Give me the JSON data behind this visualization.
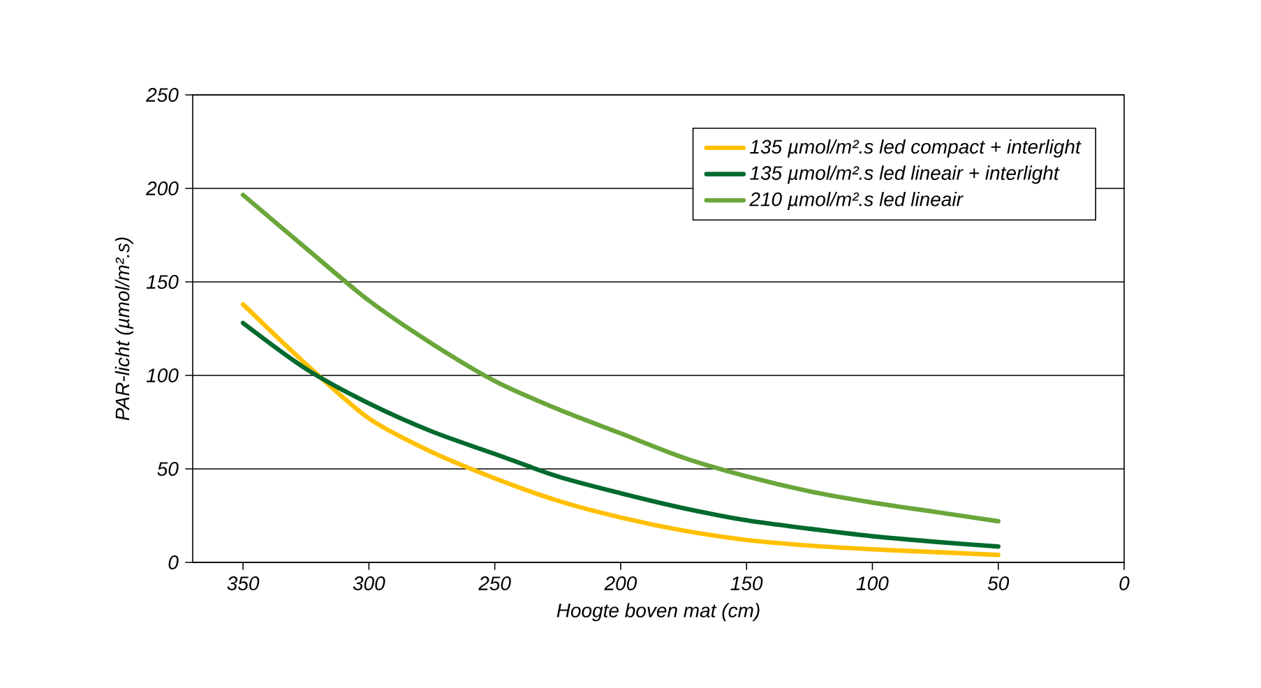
{
  "chart_data": {
    "type": "line",
    "xlabel": "Hoogte boven mat (cm)",
    "ylabel": "PAR-licht (µmol/m².s)",
    "x": [
      350,
      325,
      300,
      275,
      250,
      225,
      200,
      175,
      150,
      125,
      100,
      75,
      50
    ],
    "series": [
      {
        "name": "135 µmol/m².s led compact + interlight",
        "color": "#ffc000",
        "values": [
          138,
          106,
          77,
          59,
          45,
          33,
          24,
          17,
          12,
          9,
          7,
          5.5,
          4
        ]
      },
      {
        "name": "135 µmol/m².s led lineair + interlight",
        "color": "#006a2e",
        "values": [
          128,
          103.5,
          85,
          70,
          58,
          46,
          37,
          29,
          22.5,
          18,
          14,
          11,
          8.5
        ]
      },
      {
        "name": "210 µmol/m².s led lineair",
        "color": "#6aa63a",
        "values": [
          196.5,
          168,
          140,
          117,
          97,
          82,
          69,
          56,
          46,
          38,
          32,
          27,
          22
        ]
      }
    ],
    "xlim": [
      370,
      0
    ],
    "xticks": [
      350,
      300,
      250,
      200,
      150,
      100,
      50,
      0
    ],
    "ylim": [
      0,
      250
    ],
    "yticks": [
      0,
      50,
      100,
      150,
      200,
      250
    ],
    "grid": "y",
    "legend": "top right",
    "marker": "none",
    "line_style": "solid"
  }
}
